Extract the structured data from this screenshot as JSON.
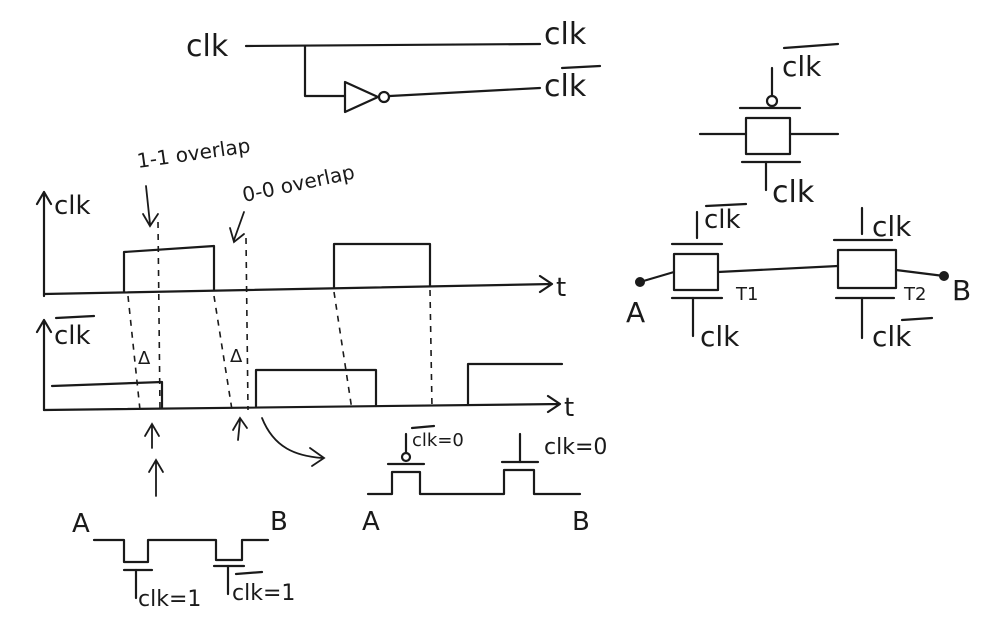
{
  "colors": {
    "ink": "#1a1a1a",
    "background": "#ffffff"
  },
  "inverter": {
    "input_label": "clk",
    "output_true": "clk",
    "output_inverted": "clk",
    "inverted_bar": true
  },
  "single_gate": {
    "top_label": "clk",
    "top_inverted": true,
    "bottom_label": "clk",
    "bottom_inverted": false
  },
  "series_gates": {
    "t1_top_label": "clk",
    "t1_top_inverted": true,
    "t1_bottom_label": "clk",
    "t1_bottom_inverted": false,
    "t1_name": "T1",
    "t2_top_label": "clk",
    "t2_top_inverted": false,
    "t2_bottom_label": "clk",
    "t2_bottom_inverted": true,
    "t2_name": "T2",
    "node_a": "A",
    "node_b": "B"
  },
  "timing": {
    "annotation_11": "1-1 overlap",
    "annotation_00": "0-0 overlap",
    "clk_axis_label": "clk",
    "clkbar_axis_label": "clk",
    "time_label": "t",
    "delta_mark": "Δ",
    "clk_waveform": [
      0,
      1,
      0,
      1,
      0
    ],
    "clkbar_waveform": [
      1,
      0,
      1,
      0,
      1
    ]
  },
  "bottom_left": {
    "node_a": "A",
    "node_b": "B",
    "gate1_label": "clk=1",
    "gate1_inverted": false,
    "gate2_label": "clk=1",
    "gate2_inverted": true
  },
  "bottom_right": {
    "node_a": "A",
    "node_b": "B",
    "gate1_label": "clk=0",
    "gate1_inverted": true,
    "gate2_label": "clk=0",
    "gate2_inverted": false
  }
}
